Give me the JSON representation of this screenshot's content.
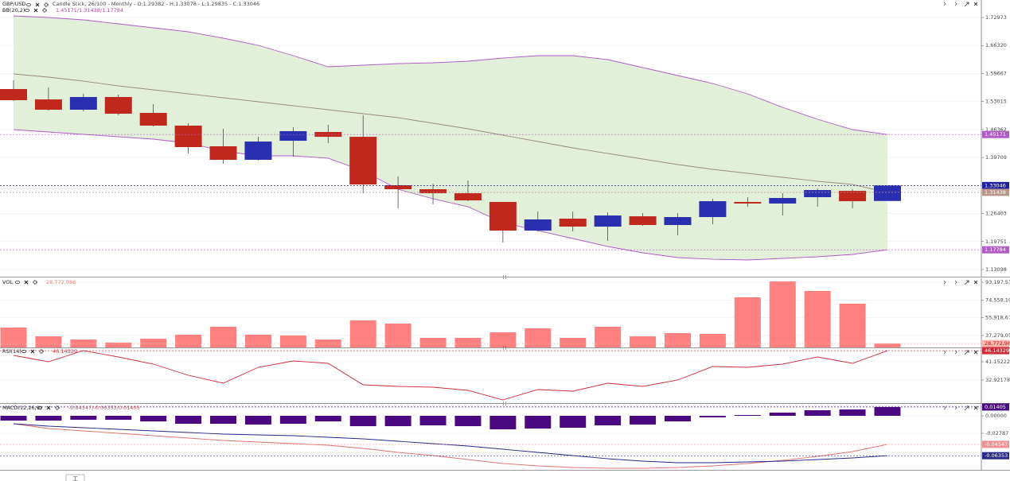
{
  "chart_data": [
    {
      "type": "candlestick",
      "title": "GBP/USD",
      "subtitle": "Candle Stick, 26/100 - Monthly - O:1.29382 - H:1.33078 - L:1.29835 - C:1.33046",
      "open": [
        1.5597,
        1.5351,
        1.5106,
        1.5408,
        1.503,
        1.4728,
        1.4237,
        1.3916,
        1.4369,
        1.4577,
        1.4463,
        1.3311,
        1.3217,
        1.3122,
        1.2915,
        1.2234,
        1.2518,
        1.2329,
        1.2574,
        1.2367,
        1.2556,
        1.2915,
        1.2877,
        1.3028,
        1.3179,
        1.29382
      ],
      "high": [
        1.5805,
        1.5635,
        1.5484,
        1.5465,
        1.5238,
        1.4785,
        1.4652,
        1.4463,
        1.469,
        1.4747,
        1.4974,
        1.3519,
        1.3349,
        1.3425,
        1.2915,
        1.2688,
        1.2688,
        1.2669,
        1.265,
        1.265,
        1.299,
        1.3028,
        1.3122,
        1.3236,
        1.3217,
        1.33078
      ],
      "low": [
        1.5314,
        1.5087,
        1.5068,
        1.4974,
        1.4709,
        1.4067,
        1.3821,
        1.3897,
        1.3991,
        1.4312,
        1.3122,
        1.2763,
        1.2858,
        1.2933,
        1.1951,
        1.2216,
        1.2216,
        1.1989,
        1.2348,
        1.2121,
        1.2386,
        1.2801,
        1.2593,
        1.2801,
        1.2763,
        1.29835
      ],
      "close": [
        1.5332,
        1.5106,
        1.5408,
        1.5011,
        1.4728,
        1.4218,
        1.3916,
        1.435,
        1.4596,
        1.4463,
        1.333,
        1.3217,
        1.3122,
        1.2952,
        1.2234,
        1.2499,
        1.2329,
        1.2593,
        1.2367,
        1.2556,
        1.2933,
        1.2877,
        1.3009,
        1.3198,
        1.2933,
        1.33046
      ],
      "up_color": "#2a2fb0",
      "down_color": "#c0281e",
      "ylim": [
        1.11394,
        1.77129
      ],
      "yticks": [
        1.72973,
        {
          "value": 1.6632,
          "label": "1.66320"
        },
        1.59667,
        1.53015,
        1.46362,
        1.39709,
        1.26403,
        1.19751,
        1.13098
      ],
      "grid": true,
      "indicator": {
        "title": "BB(20,2)",
        "readout": "1.45171/1.31438/1.17784",
        "fill": "#e2efd9",
        "series": [
          {
            "color": "#b05bc8",
            "values": [
              1.7335,
              1.7297,
              1.7241,
              1.7146,
              1.7052,
              1.6958,
              1.6806,
              1.6636,
              1.6391,
              1.6126,
              1.6164,
              1.6202,
              1.6221,
              1.6259,
              1.6334,
              1.6391,
              1.6391,
              1.6296,
              1.6107,
              1.5918,
              1.5729,
              1.5484,
              1.5163,
              1.488,
              1.4634,
              1.45171
            ]
          },
          {
            "color": "#9a8a80",
            "values": [
              1.5956,
              1.588,
              1.5786,
              1.5672,
              1.5578,
              1.5484,
              1.5389,
              1.5295,
              1.52,
              1.5106,
              1.5011,
              1.4917,
              1.4785,
              1.4652,
              1.4501,
              1.435,
              1.4199,
              1.4067,
              1.3935,
              1.3802,
              1.3689,
              1.3595,
              1.35,
              1.3406,
              1.333,
              1.31438
            ]
          },
          {
            "color": "#b05bc8",
            "values": [
              1.4634,
              1.4577,
              1.452,
              1.4463,
              1.4407,
              1.4312,
              1.4123,
              1.401,
              1.401,
              1.3953,
              1.3651,
              1.3217,
              1.299,
              1.2801,
              1.2423,
              1.2234,
              1.2046,
              1.1857,
              1.1706,
              1.1592,
              1.1554,
              1.1536,
              1.1573,
              1.1611,
              1.1668,
              1.17784
            ]
          }
        ]
      },
      "markers": [
        {
          "value": 1.45171,
          "color": "#b05bc8",
          "text_color": "#ffffff"
        },
        {
          "value": 1.33046,
          "color": "#1d1d9e",
          "text_color": "#ffffff"
        },
        {
          "value": 1.31438,
          "color": "#b8948a",
          "text_color": "#ffffff"
        },
        {
          "value": 1.17784,
          "color": "#b05bc8",
          "text_color": "#ffffff"
        }
      ]
    },
    {
      "type": "bar",
      "title": "VOL",
      "readout": "28,772,986",
      "series": [
        {
          "color": "#ff8080",
          "values": [
            45600000,
            36400000,
            33100000,
            29800000,
            33900000,
            38100000,
            46500000,
            38100000,
            37300000,
            33100000,
            53200000,
            49800000,
            34800000,
            34800000,
            40600000,
            44800000,
            34800000,
            46500000,
            36400000,
            39800000,
            38900000,
            77400000,
            94100000,
            84100000,
            70700000,
            28772986
          ]
        }
      ],
      "ylim": [
        24700000,
        97460000
      ],
      "yticks": [
        {
          "value": 93197530,
          "label": "93,197,530"
        },
        {
          "value": 74558104,
          "label": "74,558,104"
        },
        {
          "value": 55918678,
          "label": "55,918,678"
        },
        {
          "value": 37279052,
          "label": "37,279,052"
        }
      ],
      "grid": true,
      "markers": [
        {
          "value": 28772986,
          "label": "28,772,986",
          "color": "#ffb4ac",
          "text_color": "#a02020"
        }
      ]
    },
    {
      "type": "line",
      "title": "RSI(14)",
      "readout": "46.14329",
      "series": [
        {
          "color": "#d02a3a",
          "values": [
            44.01,
            41.15,
            46.16,
            43.3,
            40.08,
            35.07,
            31.5,
            38.65,
            41.51,
            40.44,
            30.77,
            30.06,
            29.7,
            28.27,
            23.97,
            28.63,
            27.92,
            31.5,
            30.06,
            32.92,
            39.01,
            38.65,
            40.08,
            43.3,
            40.44,
            46.14329
          ]
        }
      ],
      "ylim": [
        22.547,
        47.235
      ],
      "yticks": [
        41.15222,
        32.92178
      ],
      "grid": true,
      "markers": [
        {
          "value": 46.14329,
          "color": "#d02a3a",
          "text_color": "#ffffff"
        }
      ]
    },
    {
      "type": "combo",
      "title": "MACD(12,26,9)",
      "readout": "-0.04547/-0.06353/0.01405",
      "series": [
        {
          "kind": "bar",
          "color": "#4b0a82",
          "values": [
            -0.0076,
            -0.0076,
            -0.0063,
            -0.0063,
            -0.0089,
            -0.0127,
            -0.0127,
            -0.0139,
            -0.0127,
            -0.0089,
            -0.0165,
            -0.0165,
            -0.0152,
            -0.0165,
            -0.0215,
            -0.0203,
            -0.019,
            -0.0152,
            -0.0139,
            -0.0089,
            -0.0025,
            0.0013,
            0.0051,
            0.0089,
            0.0101,
            0.01405
          ]
        },
        {
          "kind": "line",
          "color": "#e07070",
          "values": [
            -0.0127,
            -0.0203,
            -0.0241,
            -0.0279,
            -0.0317,
            -0.0355,
            -0.0393,
            -0.0418,
            -0.0443,
            -0.0469,
            -0.0519,
            -0.0583,
            -0.0633,
            -0.0697,
            -0.076,
            -0.0798,
            -0.0823,
            -0.0836,
            -0.0836,
            -0.0823,
            -0.0798,
            -0.076,
            -0.0709,
            -0.0646,
            -0.057,
            -0.04547
          ]
        },
        {
          "kind": "line",
          "color": "#27288c",
          "values": [
            -0.0127,
            -0.0165,
            -0.019,
            -0.0215,
            -0.0241,
            -0.0266,
            -0.0291,
            -0.0304,
            -0.0317,
            -0.0342,
            -0.0367,
            -0.0405,
            -0.0443,
            -0.0481,
            -0.0532,
            -0.0583,
            -0.0633,
            -0.0684,
            -0.0722,
            -0.0747,
            -0.0747,
            -0.0735,
            -0.0722,
            -0.0697,
            -0.0671,
            -0.06353
          ]
        }
      ],
      "ylim": [
        -0.0861,
        0.019
      ],
      "yticks": [
        {
          "value": 0,
          "label": "0.00000"
        },
        -0.02787
      ],
      "grid": true,
      "markers": [
        {
          "value": 0.01405,
          "color": "#4b0a82",
          "text_color": "#ffffff"
        },
        {
          "value": -0.04547,
          "color": "#f09090",
          "text_color": "#ffffff"
        },
        {
          "value": -0.06353,
          "color": "#27288c",
          "text_color": "#ffffff"
        }
      ]
    }
  ],
  "footer_button": "工"
}
